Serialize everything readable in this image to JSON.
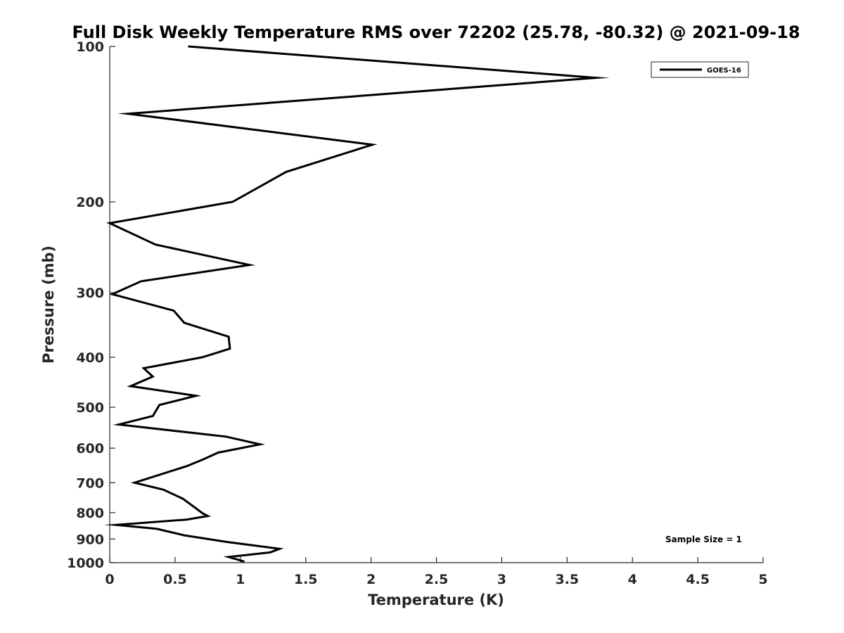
{
  "chart_data": {
    "type": "line",
    "title": "Full Disk Weekly Temperature RMS over 72202 (25.78, -80.32) @ 2021-09-18",
    "xlabel": "Temperature (K)",
    "ylabel": "Pressure (mb)",
    "xlim": [
      0,
      5
    ],
    "ylim": [
      100,
      1000
    ],
    "y_scale": "log",
    "y_reversed": true,
    "x_ticks": [
      "0",
      "0.5",
      "1",
      "1.5",
      "2",
      "2.5",
      "3",
      "3.5",
      "4",
      "4.5",
      "5"
    ],
    "y_ticks": [
      "100",
      "200",
      "300",
      "400",
      "500",
      "600",
      "700",
      "800",
      "900",
      "1000"
    ],
    "grid": false,
    "legend_position": "top-right",
    "annotation": "Sample Size = 1",
    "line_color": "#000000",
    "series": [
      {
        "name": "GOES-16",
        "x": [
          0.6,
          3.72,
          0.14,
          2.01,
          1.35,
          0.94,
          0.0,
          0.35,
          1.07,
          0.24,
          0.02,
          0.49,
          0.57,
          0.91,
          0.92,
          0.71,
          0.26,
          0.33,
          0.16,
          0.66,
          0.38,
          0.33,
          0.07,
          0.89,
          1.15,
          0.83,
          0.72,
          0.59,
          0.19,
          0.41,
          0.56,
          0.64,
          0.71,
          0.75,
          0.59,
          0.05,
          0.36,
          0.57,
          0.9,
          1.3,
          1.23,
          0.91,
          1.03
        ],
        "y": [
          100,
          115,
          135,
          155,
          175,
          200,
          220,
          242,
          265,
          285,
          302,
          325,
          343,
          365,
          385,
          400,
          420,
          436,
          455,
          475,
          495,
          520,
          540,
          570,
          590,
          612,
          630,
          650,
          700,
          722,
          752,
          778,
          802,
          812,
          825,
          845,
          860,
          885,
          912,
          940,
          955,
          975,
          995
        ]
      }
    ]
  }
}
